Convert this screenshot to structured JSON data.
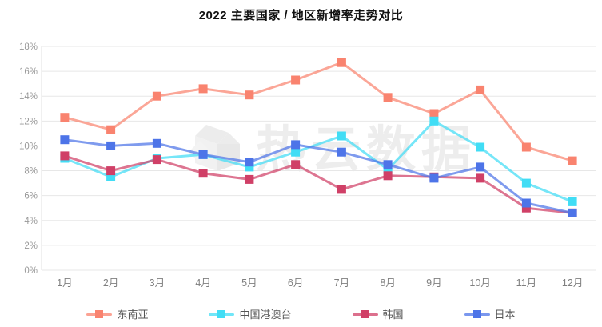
{
  "title": "2022 主要国家 / 地区新增率走势对比",
  "watermark": {
    "text": "热云数据"
  },
  "chart_data": {
    "type": "line",
    "x": [
      "1月",
      "2月",
      "3月",
      "4月",
      "5月",
      "6月",
      "7月",
      "8月",
      "9月",
      "10月",
      "11月",
      "12月"
    ],
    "series": [
      {
        "name": "东南亚",
        "color": "#F9836F",
        "values": [
          12.3,
          11.3,
          14.0,
          14.6,
          14.1,
          15.3,
          16.7,
          13.9,
          12.6,
          14.5,
          9.9,
          8.8
        ]
      },
      {
        "name": "中国港澳台",
        "color": "#41DDF5",
        "values": [
          9.0,
          7.5,
          9.0,
          9.3,
          8.3,
          9.5,
          10.8,
          8.1,
          12.0,
          9.9,
          7.0,
          5.5
        ]
      },
      {
        "name": "韩国",
        "color": "#D04067",
        "values": [
          9.2,
          8.0,
          8.9,
          7.8,
          7.3,
          8.5,
          6.5,
          7.6,
          7.5,
          7.4,
          5.0,
          4.6
        ]
      },
      {
        "name": "日本",
        "color": "#4D74E8",
        "values": [
          10.5,
          10.0,
          10.2,
          9.3,
          8.7,
          10.1,
          9.5,
          8.5,
          7.4,
          8.3,
          5.4,
          4.6
        ]
      }
    ],
    "title": "2022 主要国家 / 地区新增率走势对比",
    "xlabel": "",
    "ylabel": "",
    "ylim": [
      0,
      18
    ],
    "ytick_step": 2,
    "ylabel_suffix": "%",
    "grid": true,
    "legend_position": "bottom",
    "marker": "square",
    "colors": {
      "grid_line": "#E7E7E7",
      "axis_line": "#E2E2E2",
      "tick_label": "#999999",
      "x_label": "#7F7F7F",
      "legend_label": "#555555",
      "watermark": "#EDEDED"
    }
  }
}
